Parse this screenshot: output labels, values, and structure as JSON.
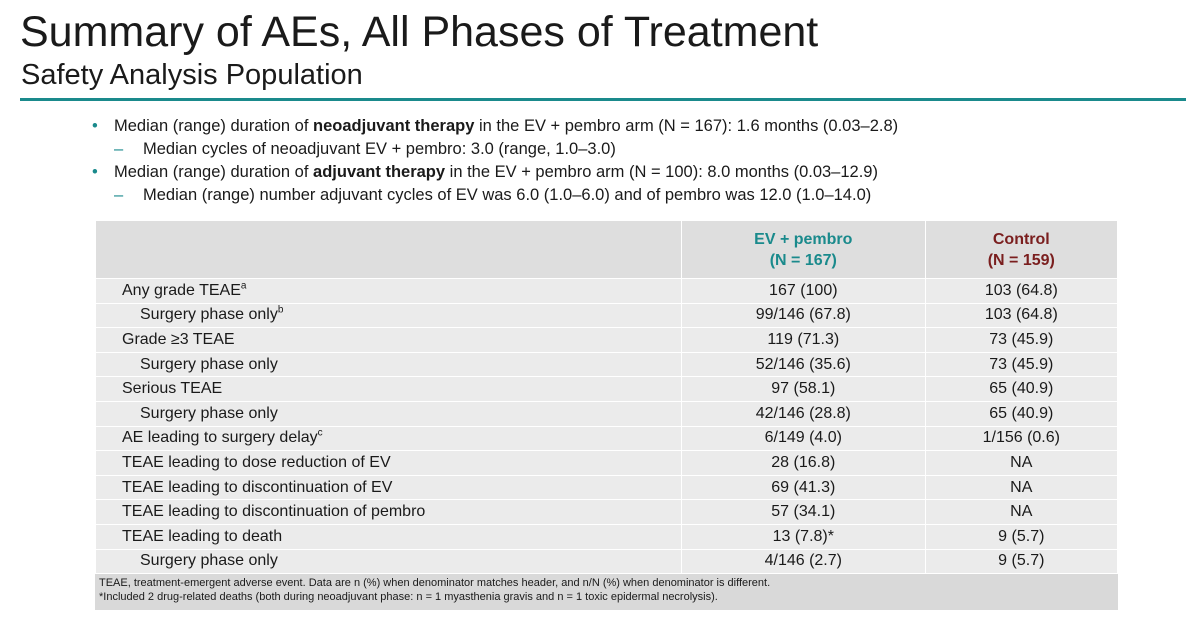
{
  "header": {
    "title": "Summary of AEs, All Phases of Treatment",
    "subtitle": "Safety Analysis Population"
  },
  "bullets": [
    {
      "parts": [
        "Median (range) duration of ",
        "neoadjuvant therapy",
        " in the EV + pembro arm (N = 167): 1.6 months (0.03–2.8)"
      ],
      "sub": "Median cycles of neoadjuvant EV + pembro: 3.0 (range, 1.0–3.0)"
    },
    {
      "parts": [
        "Median (range) duration of ",
        "adjuvant therapy",
        " in the EV + pembro arm (N = 100): 8.0 months (0.03–12.9)"
      ],
      "sub": "Median (range) number adjuvant cycles of EV was 6.0 (1.0–6.0) and of pembro was 12.0 (1.0–14.0)"
    }
  ],
  "table": {
    "header": [
      [],
      [
        "EV + pembro",
        "(N = 167)"
      ],
      [
        "Control",
        "(N = 159)"
      ]
    ],
    "rows": [
      {
        "label": "Any grade TEAE",
        "sup": "a",
        "ev": "167 (100)",
        "control": "103 (64.8)"
      },
      {
        "label": "Surgery phase only",
        "sup": "b",
        "ev": "99/146 (67.8)",
        "control": "103 (64.8)"
      },
      {
        "label": "Grade ≥3 TEAE",
        "ev": "119 (71.3)",
        "control": "73 (45.9)"
      },
      {
        "label": "Surgery phase only",
        "ev": "52/146 (35.6)",
        "control": "73 (45.9)"
      },
      {
        "label": "Serious TEAE",
        "ev": "97 (58.1)",
        "control": "65 (40.9)"
      },
      {
        "label": "Surgery phase only",
        "ev": "42/146 (28.8)",
        "control": "65 (40.9)"
      },
      {
        "label": "AE leading to surgery delay",
        "sup": "c",
        "ev": "6/149 (4.0)",
        "control": "1/156 (0.6)"
      },
      {
        "label": "TEAE leading to dose reduction of EV",
        "ev": "28 (16.8)",
        "control": "NA"
      },
      {
        "label": "TEAE leading to discontinuation of EV",
        "ev": "69 (41.3)",
        "control": "NA"
      },
      {
        "label": "TEAE leading to discontinuation of pembro",
        "ev": "57 (34.1)",
        "control": "NA"
      },
      {
        "label": "TEAE leading to death",
        "ev": "13 (7.8)*",
        "control": "9 (5.7)"
      },
      {
        "label": "Surgery phase only",
        "ev": "4/146 (2.7)",
        "control": "9 (5.7)"
      }
    ]
  },
  "footnotes": [
    "TEAE, treatment-emergent adverse event. Data are n (%) when denominator matches header, and n/N (%) when denominator is different.",
    "*Included 2 drug-related deaths (both during neoadjuvant phase: n = 1 myasthenia gravis and n = 1 toxic epidermal necrolysis)."
  ]
}
